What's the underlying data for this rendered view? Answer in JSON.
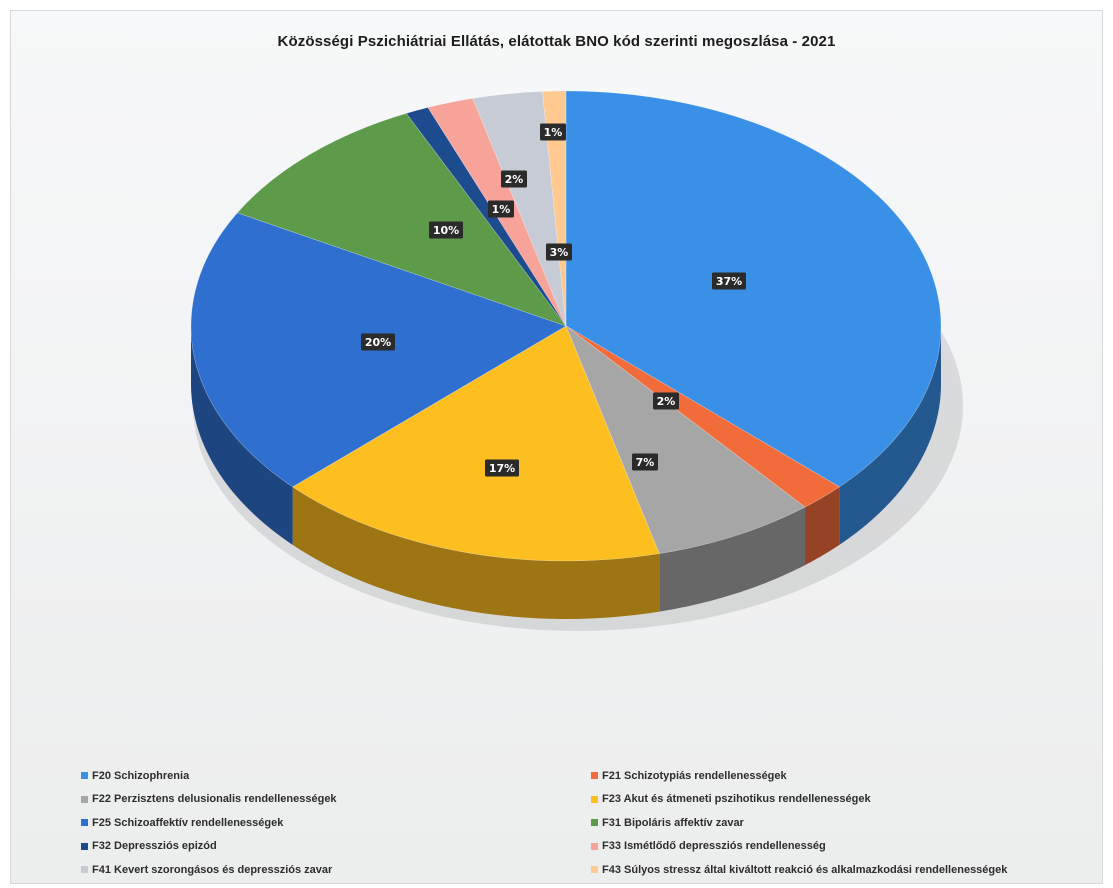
{
  "chart_data": {
    "type": "pie",
    "title": "Közösségi Pszichiátriai Ellátás, elátottak BNO kód szerinti megoszlása - 2021",
    "legend_position": "bottom",
    "slices": [
      {
        "name": "F20 Schizophrenia",
        "value": 37,
        "label": "37%",
        "color": "#3a8fe6"
      },
      {
        "name": "F21 Schizotypiás rendellenességek",
        "value": 2,
        "label": "2%",
        "color": "#f26b3a"
      },
      {
        "name": "F22 Perzisztens delusionalis rendellenességek",
        "value": 7,
        "label": "7%",
        "color": "#a6a6a6"
      },
      {
        "name": "F23 Akut és átmeneti pszihotikus rendellenességek",
        "value": 17,
        "label": "17%",
        "color": "#fdbf1f"
      },
      {
        "name": "F25 Schizoaffektív rendellenességek",
        "value": 20,
        "label": "20%",
        "color": "#2f6fcf"
      },
      {
        "name": "F31 Bipoláris affektív zavar",
        "value": 10,
        "label": "10%",
        "color": "#5d9b4a"
      },
      {
        "name": "F32 Depressziós epizód",
        "value": 1,
        "label": "1%",
        "color": "#1c4b8e"
      },
      {
        "name": "F33 Ismétlődő depressziós rendellenesség",
        "value": 2,
        "label": "2%",
        "color": "#f8a39a"
      },
      {
        "name": "F41 Kevert szorongásos és depressziós zavar",
        "value": 3,
        "label": "3%",
        "color": "#c7cbd6"
      },
      {
        "name": "F43 Súlyos stressz által kiváltott reakció és alkalmazkodási rendellenességek",
        "value": 1,
        "label": "1%",
        "color": "#ffc98f"
      }
    ]
  }
}
